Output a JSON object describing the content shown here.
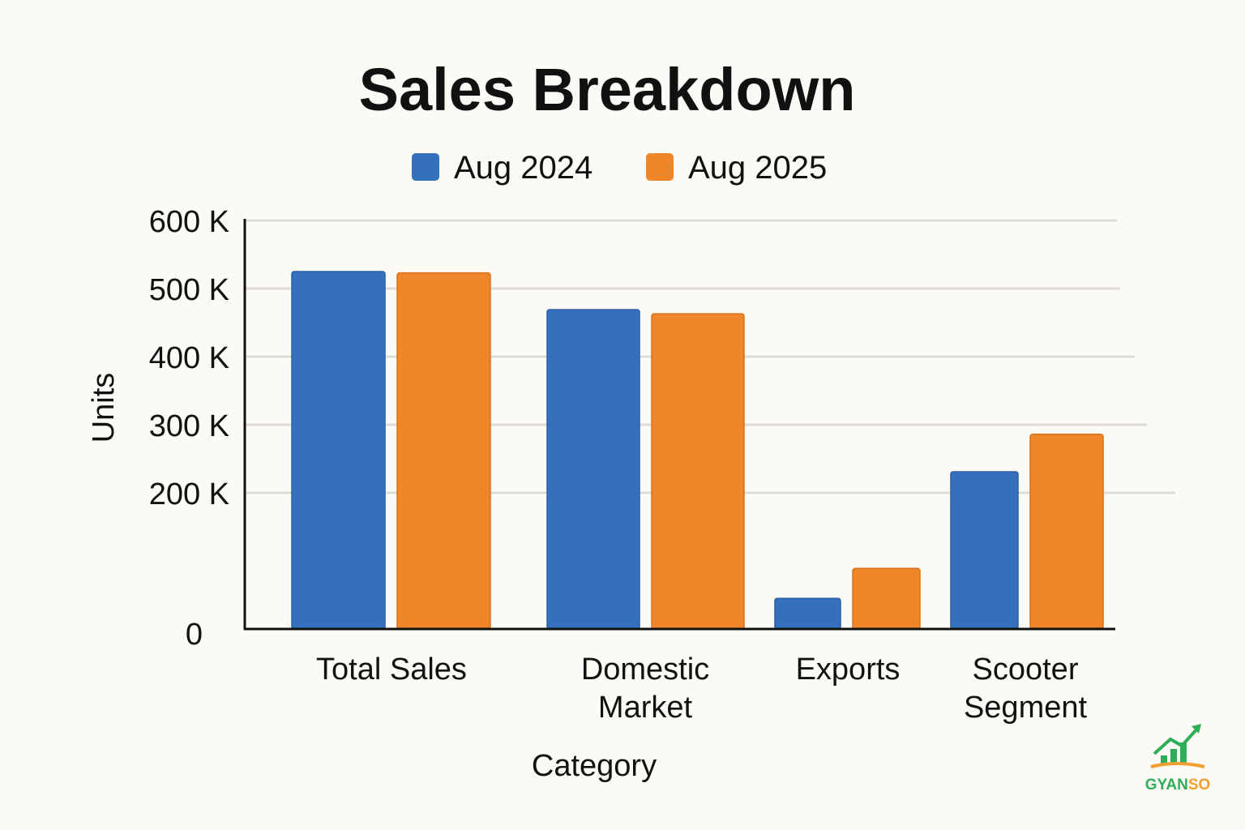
{
  "chart_data": {
    "type": "bar",
    "title": "Sales Breakdown",
    "xlabel": "Category",
    "ylabel": "Units",
    "categories": [
      [
        "Total Sales"
      ],
      [
        "Domestic",
        "Market"
      ],
      [
        "Exports"
      ],
      [
        "Scooter",
        "Segment"
      ]
    ],
    "series": [
      {
        "name": "Aug 2024",
        "color": "#3470bb",
        "values": [
          525000,
          469000,
          45000,
          231000
        ]
      },
      {
        "name": "Aug 2025",
        "color": "#f0852a",
        "values": [
          523000,
          463000,
          89000,
          286000
        ]
      }
    ],
    "ylim": [
      0,
      600000
    ],
    "yticks": [
      {
        "value": 0,
        "label": "0"
      },
      {
        "value": 200000,
        "label": "200 K"
      },
      {
        "value": 300000,
        "label": "300 K"
      },
      {
        "value": 400000,
        "label": "400 K"
      },
      {
        "value": 500000,
        "label": "500 K"
      },
      {
        "value": 600000,
        "label": "600 K"
      }
    ],
    "grid": true,
    "legend_position": "top-center"
  },
  "logo": {
    "text": "GYANSO",
    "color": "#2fae5a",
    "accent": "#f0a030"
  }
}
